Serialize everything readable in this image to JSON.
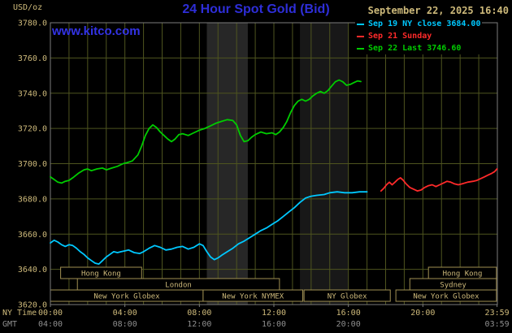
{
  "header": {
    "unit_label": "USD/oz",
    "title": "24 Hour Spot Gold (Bid)",
    "datetime": "September 22, 2025 16:40",
    "legend": [
      {
        "label": "Sep 19 NY close 3684.00",
        "color": "#00c8ff"
      },
      {
        "label": "Sep 21 Sunday",
        "color": "#ff2a2a"
      },
      {
        "label": "Sep 22 Last 3746.60",
        "color": "#00cc00"
      }
    ]
  },
  "watermark": "www.kitco.com",
  "colors": {
    "background": "#000000",
    "title_blue": "#2e2ed8",
    "watermark_blue": "#3333e6",
    "tan_text": "#cdb97a",
    "session_border": "#a08f52",
    "gmt_text": "#8f8f8f",
    "plot_border": "#7d7d7d"
  },
  "axes": {
    "ny_time_label": "NY Time",
    "gmt_label": "GMT",
    "x_tick_hours": [
      0,
      4,
      8,
      12,
      16,
      20,
      23.983
    ],
    "x_tick_labels_ny": [
      "00:00",
      "04:00",
      "08:00",
      "12:00",
      "16:00",
      "20:00",
      "23:59"
    ],
    "x_tick_labels_gmt": [
      "04:00",
      "08:00",
      "12:00",
      "16:00",
      "20:00",
      "",
      "03:59"
    ],
    "y_ticks": [
      3620,
      3640,
      3660,
      3680,
      3700,
      3720,
      3740,
      3760,
      3780
    ]
  },
  "chart_data": {
    "type": "line",
    "title": "24 Hour Spot Gold (Bid)",
    "ylabel": "USD/oz",
    "ylim": [
      3620,
      3780
    ],
    "xlim_hours": [
      0,
      24
    ],
    "grid": true,
    "grid_color": "#4e541f",
    "shaded_bands": [
      {
        "from_hour": 8.4,
        "to_hour": 10.6,
        "color": "#272727"
      },
      {
        "from_hour": 13.4,
        "to_hour": 16.0,
        "color": "#181818"
      }
    ],
    "series": [
      {
        "id": "sep19",
        "name": "Sep 19 NY close",
        "close": 3684.0,
        "color": "#00c8ff",
        "points": [
          [
            0,
            3655
          ],
          [
            0.2,
            3656.5
          ],
          [
            0.4,
            3655.5
          ],
          [
            0.6,
            3654
          ],
          [
            0.8,
            3653
          ],
          [
            1,
            3654
          ],
          [
            1.2,
            3653.5
          ],
          [
            1.4,
            3652
          ],
          [
            1.6,
            3650
          ],
          [
            1.8,
            3648.5
          ],
          [
            2,
            3646.5
          ],
          [
            2.2,
            3645
          ],
          [
            2.4,
            3643.5
          ],
          [
            2.6,
            3643
          ],
          [
            2.8,
            3645
          ],
          [
            3,
            3647
          ],
          [
            3.2,
            3648.5
          ],
          [
            3.4,
            3650
          ],
          [
            3.6,
            3649.5
          ],
          [
            3.8,
            3650
          ],
          [
            4,
            3650.5
          ],
          [
            4.2,
            3651
          ],
          [
            4.5,
            3649.5
          ],
          [
            4.8,
            3649
          ],
          [
            5,
            3650
          ],
          [
            5.3,
            3652
          ],
          [
            5.6,
            3653.5
          ],
          [
            5.9,
            3652.5
          ],
          [
            6.2,
            3651
          ],
          [
            6.5,
            3651.5
          ],
          [
            6.8,
            3652.5
          ],
          [
            7.1,
            3653
          ],
          [
            7.4,
            3651.5
          ],
          [
            7.7,
            3652.5
          ],
          [
            8,
            3654.5
          ],
          [
            8.2,
            3653.5
          ],
          [
            8.4,
            3650
          ],
          [
            8.6,
            3647
          ],
          [
            8.8,
            3645.5
          ],
          [
            9,
            3646.5
          ],
          [
            9.2,
            3648
          ],
          [
            9.5,
            3650
          ],
          [
            9.8,
            3652
          ],
          [
            10.1,
            3654.5
          ],
          [
            10.4,
            3656
          ],
          [
            10.7,
            3658
          ],
          [
            11,
            3660
          ],
          [
            11.3,
            3662
          ],
          [
            11.6,
            3663.5
          ],
          [
            11.9,
            3665.5
          ],
          [
            12.2,
            3667.5
          ],
          [
            12.5,
            3670
          ],
          [
            12.8,
            3672.5
          ],
          [
            13.1,
            3675
          ],
          [
            13.4,
            3678
          ],
          [
            13.7,
            3680.5
          ],
          [
            14,
            3681.5
          ],
          [
            14.3,
            3682
          ],
          [
            14.7,
            3682.5
          ],
          [
            15,
            3683.5
          ],
          [
            15.4,
            3684
          ],
          [
            15.8,
            3683.5
          ],
          [
            16.2,
            3683.5
          ],
          [
            16.6,
            3684
          ],
          [
            17,
            3684
          ]
        ]
      },
      {
        "id": "sep21",
        "name": "Sep 21 Sunday",
        "color": "#ff2a2a",
        "points": [
          [
            17.75,
            3684.5
          ],
          [
            17.9,
            3686
          ],
          [
            18.05,
            3688
          ],
          [
            18.2,
            3689.5
          ],
          [
            18.35,
            3688
          ],
          [
            18.5,
            3689.5
          ],
          [
            18.65,
            3691
          ],
          [
            18.8,
            3692
          ],
          [
            18.95,
            3690.5
          ],
          [
            19.1,
            3688.5
          ],
          [
            19.3,
            3686.5
          ],
          [
            19.5,
            3685.5
          ],
          [
            19.7,
            3684.5
          ],
          [
            19.9,
            3685
          ],
          [
            20.1,
            3686.5
          ],
          [
            20.3,
            3687.5
          ],
          [
            20.5,
            3688
          ],
          [
            20.7,
            3687
          ],
          [
            20.9,
            3688
          ],
          [
            21.1,
            3689
          ],
          [
            21.3,
            3690
          ],
          [
            21.5,
            3689.5
          ],
          [
            21.7,
            3688.5
          ],
          [
            21.9,
            3688
          ],
          [
            22.1,
            3688.5
          ],
          [
            22.4,
            3689.5
          ],
          [
            22.7,
            3690
          ],
          [
            22.9,
            3690.5
          ],
          [
            23.1,
            3691.5
          ],
          [
            23.3,
            3692.5
          ],
          [
            23.5,
            3693.5
          ],
          [
            23.7,
            3694.5
          ],
          [
            23.85,
            3695.5
          ],
          [
            23.98,
            3697
          ]
        ]
      },
      {
        "id": "sep22",
        "name": "Sep 22",
        "last": 3746.6,
        "color": "#00cc00",
        "points": [
          [
            0,
            3692.5
          ],
          [
            0.2,
            3691
          ],
          [
            0.4,
            3689.5
          ],
          [
            0.6,
            3689
          ],
          [
            0.8,
            3690
          ],
          [
            1,
            3690.5
          ],
          [
            1.2,
            3692
          ],
          [
            1.5,
            3694.5
          ],
          [
            1.8,
            3696.5
          ],
          [
            2,
            3697
          ],
          [
            2.2,
            3696
          ],
          [
            2.5,
            3697
          ],
          [
            2.8,
            3697.5
          ],
          [
            3,
            3696.5
          ],
          [
            3.3,
            3697.5
          ],
          [
            3.6,
            3698.5
          ],
          [
            3.9,
            3700
          ],
          [
            4.1,
            3700.5
          ],
          [
            4.4,
            3701.5
          ],
          [
            4.7,
            3705
          ],
          [
            4.9,
            3710
          ],
          [
            5.1,
            3716
          ],
          [
            5.3,
            3720
          ],
          [
            5.5,
            3722
          ],
          [
            5.7,
            3720.5
          ],
          [
            5.9,
            3718
          ],
          [
            6.1,
            3716
          ],
          [
            6.3,
            3714
          ],
          [
            6.5,
            3712.5
          ],
          [
            6.7,
            3714
          ],
          [
            6.9,
            3716.5
          ],
          [
            7.1,
            3717
          ],
          [
            7.4,
            3716
          ],
          [
            7.7,
            3717.5
          ],
          [
            8,
            3719
          ],
          [
            8.3,
            3720
          ],
          [
            8.6,
            3721.5
          ],
          [
            8.9,
            3723
          ],
          [
            9.2,
            3724
          ],
          [
            9.5,
            3725
          ],
          [
            9.8,
            3724.5
          ],
          [
            10,
            3722
          ],
          [
            10.2,
            3716
          ],
          [
            10.4,
            3712.5
          ],
          [
            10.6,
            3713
          ],
          [
            10.8,
            3715
          ],
          [
            11,
            3716.5
          ],
          [
            11.3,
            3718
          ],
          [
            11.6,
            3717
          ],
          [
            11.9,
            3717.5
          ],
          [
            12.1,
            3716.5
          ],
          [
            12.3,
            3718
          ],
          [
            12.5,
            3720.5
          ],
          [
            12.7,
            3724
          ],
          [
            12.9,
            3729
          ],
          [
            13.1,
            3733
          ],
          [
            13.3,
            3735.5
          ],
          [
            13.5,
            3736.5
          ],
          [
            13.7,
            3735.5
          ],
          [
            13.9,
            3736.5
          ],
          [
            14.1,
            3738.5
          ],
          [
            14.3,
            3740
          ],
          [
            14.5,
            3741
          ],
          [
            14.7,
            3740
          ],
          [
            14.9,
            3741.5
          ],
          [
            15.1,
            3744
          ],
          [
            15.3,
            3746.5
          ],
          [
            15.5,
            3747.5
          ],
          [
            15.7,
            3746.5
          ],
          [
            15.9,
            3744.5
          ],
          [
            16.1,
            3745
          ],
          [
            16.3,
            3746
          ],
          [
            16.5,
            3747
          ],
          [
            16.67,
            3746.6
          ]
        ]
      }
    ],
    "sessions": [
      {
        "label": "Hong Kong",
        "row": 0,
        "from_hour": 0.55,
        "to_hour": 4.9
      },
      {
        "label": "Hong Kong",
        "row": 0,
        "from_hour": 20.3,
        "to_hour": 23.95
      },
      {
        "label": "London",
        "row": 1,
        "from_hour": 1.45,
        "to_hour": 12.3
      },
      {
        "label": "Sydney",
        "row": 1,
        "from_hour": 19.3,
        "to_hour": 23.95
      },
      {
        "label": "New York Globex",
        "row": 2,
        "from_hour": 0.0,
        "to_hour": 8.2
      },
      {
        "label": "New York NYMEX",
        "row": 2,
        "from_hour": 8.2,
        "to_hour": 13.55
      },
      {
        "label": "NY Globex",
        "row": 2,
        "from_hour": 13.62,
        "to_hour": 18.25
      },
      {
        "label": "New York Globex",
        "row": 2,
        "from_hour": 18.55,
        "to_hour": 23.95
      }
    ]
  }
}
